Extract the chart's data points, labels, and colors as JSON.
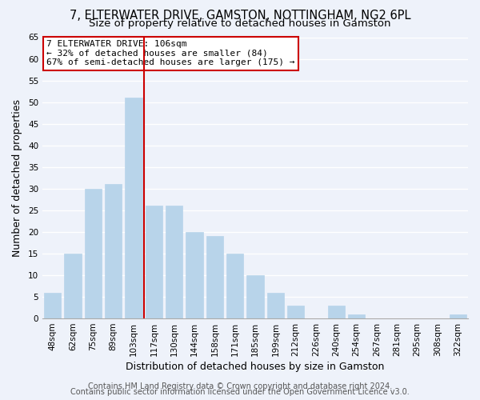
{
  "title": "7, ELTERWATER DRIVE, GAMSTON, NOTTINGHAM, NG2 6PL",
  "subtitle": "Size of property relative to detached houses in Gamston",
  "xlabel": "Distribution of detached houses by size in Gamston",
  "ylabel": "Number of detached properties",
  "bar_labels": [
    "48sqm",
    "62sqm",
    "75sqm",
    "89sqm",
    "103sqm",
    "117sqm",
    "130sqm",
    "144sqm",
    "158sqm",
    "171sqm",
    "185sqm",
    "199sqm",
    "212sqm",
    "226sqm",
    "240sqm",
    "254sqm",
    "267sqm",
    "281sqm",
    "295sqm",
    "308sqm",
    "322sqm"
  ],
  "bar_values": [
    6,
    15,
    30,
    31,
    51,
    26,
    26,
    20,
    19,
    15,
    10,
    6,
    3,
    0,
    3,
    1,
    0,
    0,
    0,
    0,
    1
  ],
  "bar_color": "#b8d4ea",
  "bar_edge_color": "#b8d4ea",
  "vline_x": 4.5,
  "vline_color": "#cc0000",
  "ylim": [
    0,
    65
  ],
  "yticks": [
    0,
    5,
    10,
    15,
    20,
    25,
    30,
    35,
    40,
    45,
    50,
    55,
    60,
    65
  ],
  "annotation_box_text": "7 ELTERWATER DRIVE: 106sqm\n← 32% of detached houses are smaller (84)\n67% of semi-detached houses are larger (175) →",
  "annotation_box_color": "#ffffff",
  "annotation_box_edge": "#cc0000",
  "footer_line1": "Contains HM Land Registry data © Crown copyright and database right 2024.",
  "footer_line2": "Contains public sector information licensed under the Open Government Licence v3.0.",
  "background_color": "#eef2fa",
  "grid_color": "#ffffff",
  "title_fontsize": 10.5,
  "subtitle_fontsize": 9.5,
  "axis_fontsize": 9,
  "tick_fontsize": 7.5,
  "footer_fontsize": 7
}
